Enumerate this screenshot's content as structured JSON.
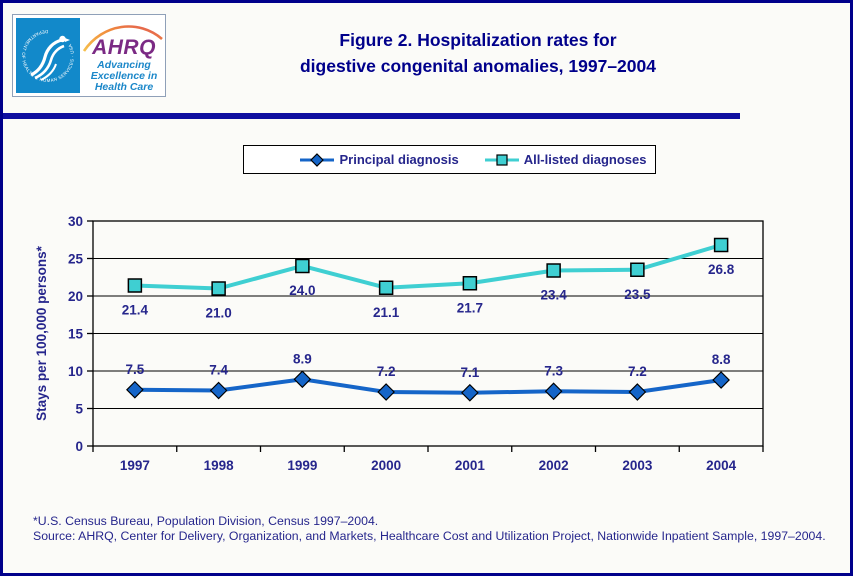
{
  "window": {
    "bg_color": "#fbfbf8",
    "border_color": "#00008b"
  },
  "header": {
    "logo": {
      "org_circle_text": "DEPARTMENT OF HEALTH & HUMAN SERVICES · USA",
      "acronym": "AHRQ",
      "tagline_lines": [
        "Advancing",
        "Excellence in",
        "Health Care"
      ],
      "seal_color": "#1289ca",
      "acronym_color": "#7b2a84",
      "tagline_color": "#1b87c9"
    },
    "title_line1": "Figure 2. Hospitalization rates for",
    "title_line2": "digestive congenital anomalies, 1997–2004",
    "title_color": "#00008b"
  },
  "chart_data": {
    "type": "line",
    "title": "Figure 2. Hospitalization rates for digestive congenital anomalies, 1997–2004",
    "categories": [
      "1997",
      "1998",
      "1999",
      "2000",
      "2001",
      "2002",
      "2003",
      "2004"
    ],
    "series": [
      {
        "name": "Principal diagnosis",
        "values": [
          7.5,
          7.4,
          8.9,
          7.2,
          7.1,
          7.3,
          7.2,
          8.8
        ],
        "color": "#1565c8",
        "marker": "diamond",
        "label_position": "above"
      },
      {
        "name": "All-listed diagnoses",
        "values": [
          21.4,
          21.0,
          24.0,
          21.1,
          21.7,
          23.4,
          23.5,
          26.8
        ],
        "color": "#3fcfd2",
        "marker": "square",
        "label_position": "below"
      }
    ],
    "xlabel": "",
    "ylabel": "Stays per 100,000 persons*",
    "ylim": [
      0,
      30
    ],
    "ytick_step": 5,
    "grid": true,
    "legend_position": "top",
    "label_color": "#26268c",
    "axis_color": "#000000"
  },
  "footnotes": [
    "*U.S. Census Bureau, Population Division, Census 1997–2004.",
    "Source: AHRQ, Center for Delivery, Organization, and Markets, Healthcare Cost and Utilization Project, Nationwide Inpatient Sample, 1997–2004."
  ]
}
